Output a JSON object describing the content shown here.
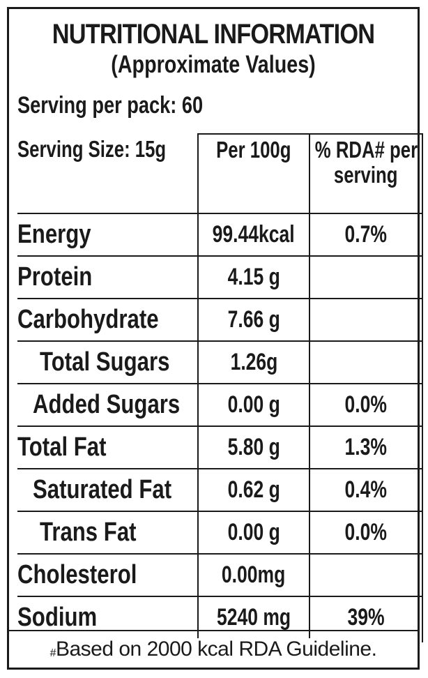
{
  "label": {
    "title": "NUTRITIONAL INFORMATION",
    "subtitle": "(Approximate Values)",
    "serving_per_pack": "Serving per pack: 60",
    "header": {
      "col1": "Serving Size: 15g",
      "col2": "Per 100g",
      "col3_line1": "% RDA# per",
      "col3_line2": "serving"
    },
    "rows": [
      {
        "name": "Energy",
        "per100": "99.44kcal",
        "rda": "0.7%"
      },
      {
        "name": "Protein",
        "per100": "4.15 g",
        "rda": ""
      },
      {
        "name": "Carbohydrate",
        "per100": "7.66 g",
        "rda": ""
      },
      {
        "name": "Total Sugars",
        "per100": "1.26g",
        "rda": ""
      },
      {
        "name": "Added Sugars",
        "per100": "0.00 g",
        "rda": "0.0%"
      },
      {
        "name": "Total Fat",
        "per100": "5.80 g",
        "rda": "1.3%"
      },
      {
        "name": "Saturated Fat",
        "per100": "0.62 g",
        "rda": "0.4%"
      },
      {
        "name": "Trans Fat",
        "per100": "0.00 g",
        "rda": "0.0%"
      },
      {
        "name": "Cholesterol",
        "per100": "0.00mg",
        "rda": ""
      },
      {
        "name": "Sodium",
        "per100": "5240 mg",
        "rda": "39%"
      }
    ],
    "footnote_mark": "#",
    "footnote": "Based on 2000 kcal RDA Guideline."
  }
}
